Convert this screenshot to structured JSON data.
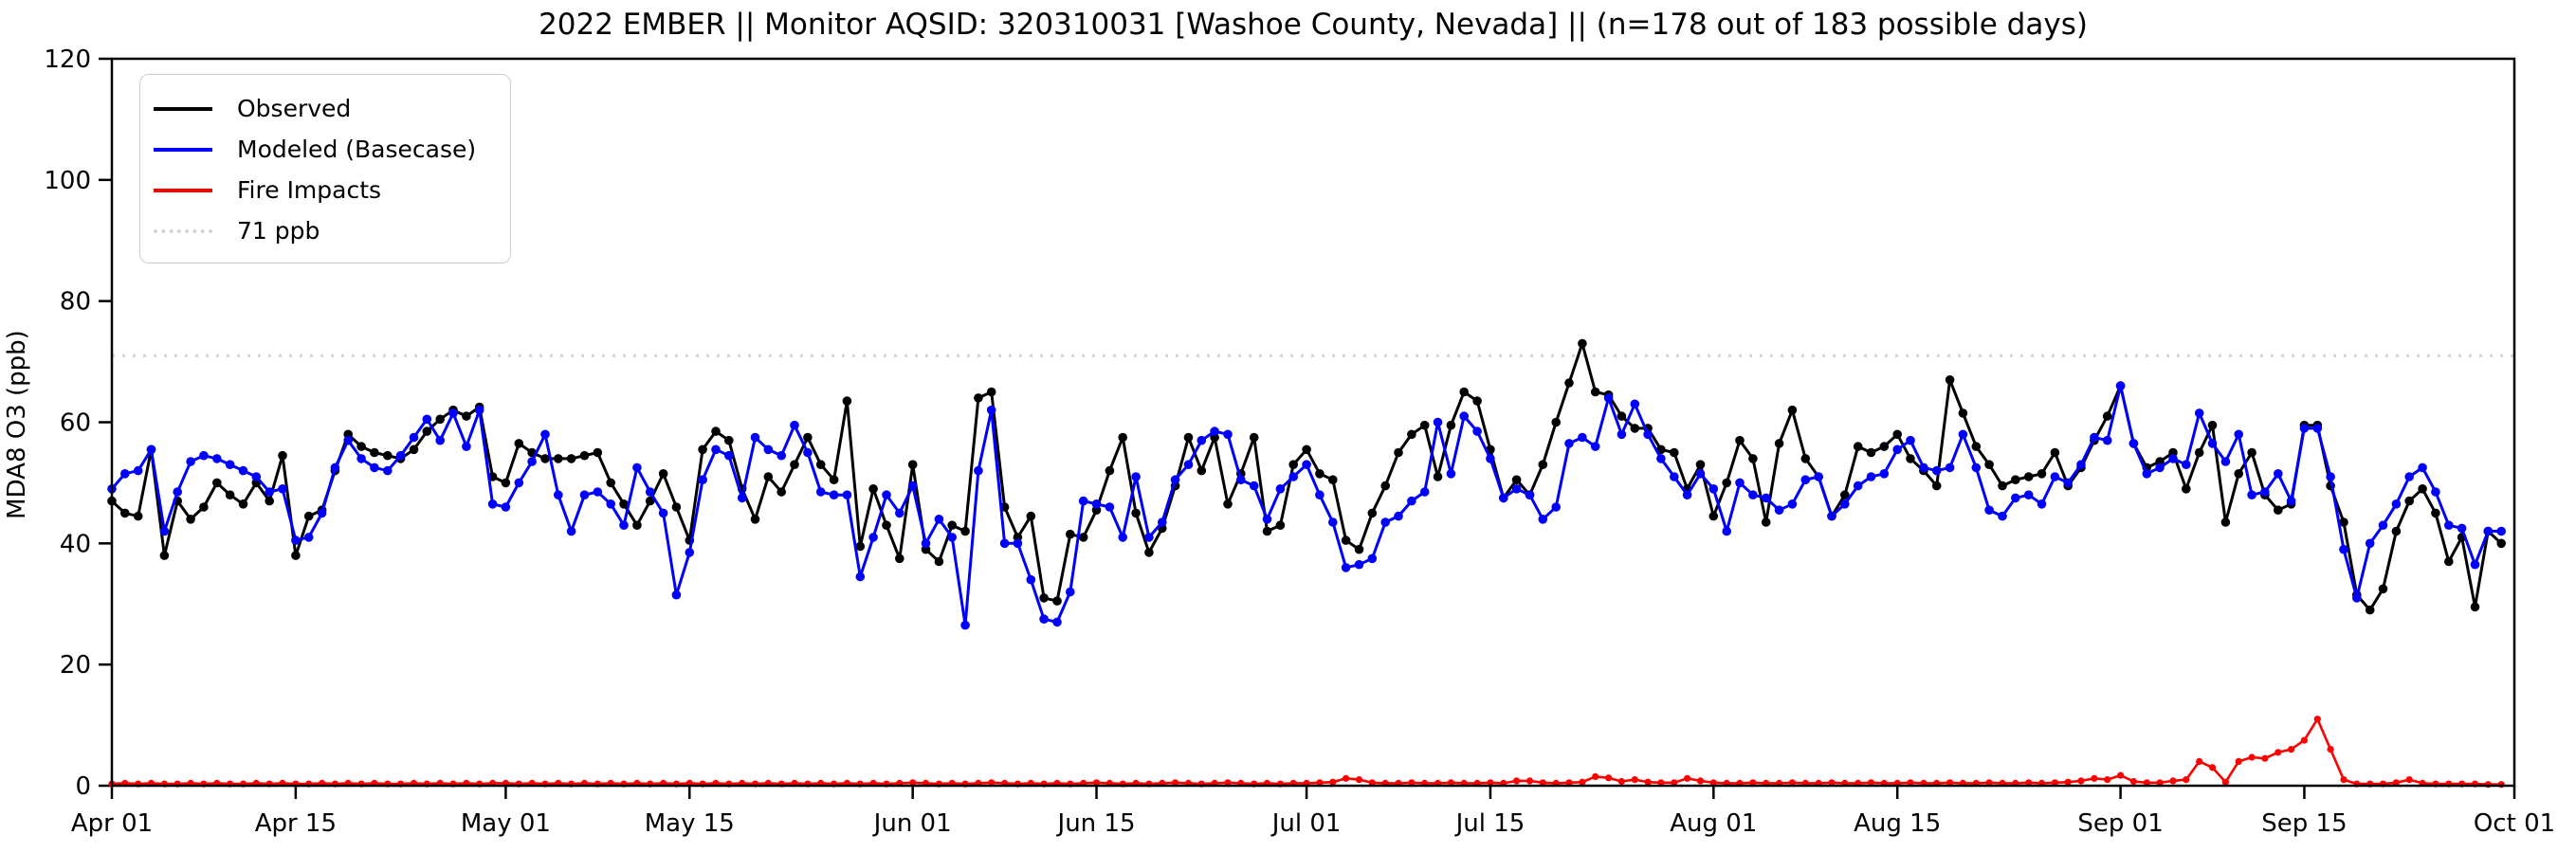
{
  "title": "2022 EMBER || Monitor AQSID: 320310031 [Washoe County, Nevada] || (n=178 out of 183 possible days)",
  "chart_data": {
    "type": "line",
    "title": "2022 EMBER || Monitor AQSID: 320310031 [Washoe County, Nevada] || (n=178 out of 183 possible days)",
    "xlabel": "",
    "ylabel": "MDA8 O3 (ppb)",
    "ylim": [
      0,
      120
    ],
    "yticks": [
      0,
      20,
      40,
      60,
      80,
      100,
      120
    ],
    "grid": "off",
    "legend_position": "upper-left",
    "x_start_date": "Apr 01",
    "x_end_date": "Oct 01",
    "x_total_days": 183,
    "x_tick_labels": [
      "Apr 01",
      "Apr 15",
      "May 01",
      "May 15",
      "Jun 01",
      "Jun 15",
      "Jul 01",
      "Jul 15",
      "Aug 01",
      "Aug 15",
      "Sep 01",
      "Sep 15",
      "Oct 01"
    ],
    "x_tick_day_offsets": [
      0,
      14,
      30,
      44,
      61,
      75,
      91,
      105,
      122,
      136,
      153,
      167,
      183
    ],
    "threshold_line": {
      "label": "71 ppb",
      "value": 71,
      "color": "#d3d3d3",
      "style": "dotted"
    },
    "series": [
      {
        "name": "Observed",
        "color": "#000000",
        "marker": "circle",
        "values": [
          47,
          45,
          44.5,
          55.5,
          38,
          47,
          44,
          46,
          50,
          48,
          46.5,
          50,
          47,
          54.5,
          38,
          44.5,
          45.5,
          52,
          58,
          56,
          55,
          54.5,
          54,
          55.5,
          58.5,
          60.5,
          62,
          61,
          62.5,
          51,
          50,
          56.5,
          55,
          54,
          54,
          54,
          54.5,
          55,
          50,
          46.5,
          43,
          47,
          51.5,
          46,
          40.5,
          55.5,
          58.5,
          57,
          49,
          44,
          51,
          48.5,
          53,
          57.5,
          53,
          50.5,
          63.5,
          39.5,
          49,
          43,
          37.5,
          53,
          39,
          37,
          43,
          42,
          64,
          65,
          46,
          41,
          44.5,
          31,
          30.5,
          41.5,
          41,
          45.5,
          52,
          57.5,
          45,
          38.5,
          42.5,
          49.5,
          57.5,
          52,
          57.5,
          46.5,
          51.5,
          57.5,
          42,
          43,
          53,
          55.5,
          51.5,
          50.5,
          40.5,
          39,
          45,
          49.5,
          55,
          58,
          59.5,
          51,
          59.5,
          65,
          63.5,
          55.5,
          47.5,
          50.5,
          48,
          53,
          60,
          66.5,
          73,
          65,
          64.5,
          61,
          59,
          59,
          55.5,
          55,
          49,
          53,
          44.5,
          50,
          57,
          54,
          43.5,
          56.5,
          62,
          54,
          51,
          44.5,
          48,
          56,
          55,
          56,
          58,
          54,
          52,
          49.5,
          67,
          61.5,
          56,
          53,
          49.5,
          50.5,
          51,
          51.5,
          55,
          49.5,
          52.5,
          57,
          61,
          66,
          56.5,
          52.5,
          53.5,
          55,
          49,
          55,
          59.5,
          43.5,
          51.5,
          55,
          48,
          45.5,
          46.5,
          59.5,
          59.5,
          49.5,
          43.5,
          31.5,
          29,
          32.5,
          42,
          47,
          49,
          45,
          37,
          41,
          29.5,
          42,
          40
        ]
      },
      {
        "name": "Modeled (Basecase)",
        "color": "#0000ff",
        "marker": "circle",
        "values": [
          49,
          51.5,
          52,
          55.5,
          42,
          48.5,
          53.5,
          54.5,
          54,
          53,
          52,
          51,
          48.5,
          49,
          40.5,
          41,
          45,
          52.5,
          57,
          54,
          52.5,
          52,
          54.5,
          57.5,
          60.5,
          57,
          61.5,
          56,
          62,
          46.5,
          46,
          50,
          53.5,
          58,
          48,
          42,
          48,
          48.5,
          46.5,
          43,
          52.5,
          48.5,
          45,
          31.5,
          38.5,
          50.5,
          55.5,
          54.5,
          47.5,
          57.5,
          55.5,
          54.5,
          59.5,
          55,
          48.5,
          48,
          48,
          34.5,
          41,
          48,
          45,
          49.5,
          40,
          44,
          41,
          26.5,
          52,
          62,
          40,
          40,
          34,
          27.5,
          27,
          32,
          47,
          46.5,
          46,
          41,
          51,
          41,
          43.5,
          50.5,
          53,
          57,
          58.5,
          58,
          50.5,
          49.5,
          44,
          49,
          51,
          53,
          48,
          43.5,
          36,
          36.5,
          37.5,
          43.5,
          44.5,
          47,
          48.5,
          60,
          51.5,
          61,
          58.5,
          54,
          47.5,
          49,
          48,
          44,
          46,
          56.5,
          57.5,
          56,
          64,
          58,
          63,
          58,
          54,
          51,
          48,
          51.5,
          49,
          42,
          50,
          48,
          47.5,
          45.5,
          46.5,
          50.5,
          51,
          44.5,
          46.5,
          49.5,
          51,
          51.5,
          55.5,
          57,
          52.5,
          52,
          52.5,
          58,
          52.5,
          45.5,
          44.5,
          47.5,
          48,
          46.5,
          51,
          50,
          53,
          57.5,
          57,
          66,
          56.5,
          51.5,
          52.5,
          54,
          53,
          61.5,
          56.5,
          53.5,
          58,
          48,
          48.5,
          51.5,
          47,
          59,
          59,
          51,
          39,
          31,
          40,
          43,
          46.5,
          51,
          52.5,
          48.5,
          43,
          42.5,
          36.5,
          42,
          42
        ]
      },
      {
        "name": "Fire Impacts",
        "color": "#ff0000",
        "marker": "circle",
        "values": [
          0.3,
          0.4,
          0.3,
          0.4,
          0.3,
          0.3,
          0.4,
          0.3,
          0.4,
          0.3,
          0.3,
          0.4,
          0.3,
          0.4,
          0.3,
          0.3,
          0.4,
          0.3,
          0.4,
          0.3,
          0.4,
          0.3,
          0.3,
          0.4,
          0.3,
          0.4,
          0.3,
          0.4,
          0.3,
          0.4,
          0.4,
          0.3,
          0.4,
          0.3,
          0.4,
          0.3,
          0.4,
          0.3,
          0.4,
          0.3,
          0.4,
          0.3,
          0.4,
          0.3,
          0.4,
          0.3,
          0.4,
          0.3,
          0.4,
          0.3,
          0.4,
          0.3,
          0.4,
          0.3,
          0.4,
          0.3,
          0.4,
          0.3,
          0.4,
          0.3,
          0.4,
          0.5,
          0.4,
          0.3,
          0.4,
          0.3,
          0.4,
          0.5,
          0.4,
          0.3,
          0.4,
          0.3,
          0.4,
          0.3,
          0.4,
          0.5,
          0.4,
          0.3,
          0.4,
          0.3,
          0.4,
          0.5,
          0.4,
          0.3,
          0.4,
          0.5,
          0.4,
          0.3,
          0.4,
          0.3,
          0.4,
          0.4,
          0.5,
          0.6,
          1.2,
          1.0,
          0.5,
          0.4,
          0.4,
          0.5,
          0.4,
          0.4,
          0.5,
          0.4,
          0.4,
          0.5,
          0.4,
          0.8,
          0.8,
          0.5,
          0.4,
          0.5,
          0.6,
          1.5,
          1.3,
          0.7,
          1.0,
          0.6,
          0.5,
          0.5,
          1.2,
          0.8,
          0.5,
          0.4,
          0.4,
          0.5,
          0.4,
          0.4,
          0.5,
          0.4,
          0.4,
          0.5,
          0.4,
          0.4,
          0.5,
          0.4,
          0.4,
          0.5,
          0.4,
          0.4,
          0.5,
          0.4,
          0.4,
          0.5,
          0.4,
          0.4,
          0.5,
          0.4,
          0.5,
          0.6,
          0.8,
          1.2,
          1.0,
          1.7,
          0.7,
          0.5,
          0.5,
          0.8,
          1.0,
          4.0,
          3.0,
          0.6,
          4.0,
          4.7,
          4.5,
          5.5,
          6.0,
          7.5,
          11.0,
          6.0,
          1.0,
          0.3,
          0.3,
          0.3,
          0.5,
          1.0,
          0.4,
          0.3,
          0.3,
          0.3,
          0.3,
          0.2,
          0.2
        ]
      }
    ]
  },
  "legend": {
    "items": [
      {
        "label": "Observed"
      },
      {
        "label": "Modeled (Basecase)"
      },
      {
        "label": "Fire Impacts"
      },
      {
        "label": "71 ppb"
      }
    ]
  }
}
